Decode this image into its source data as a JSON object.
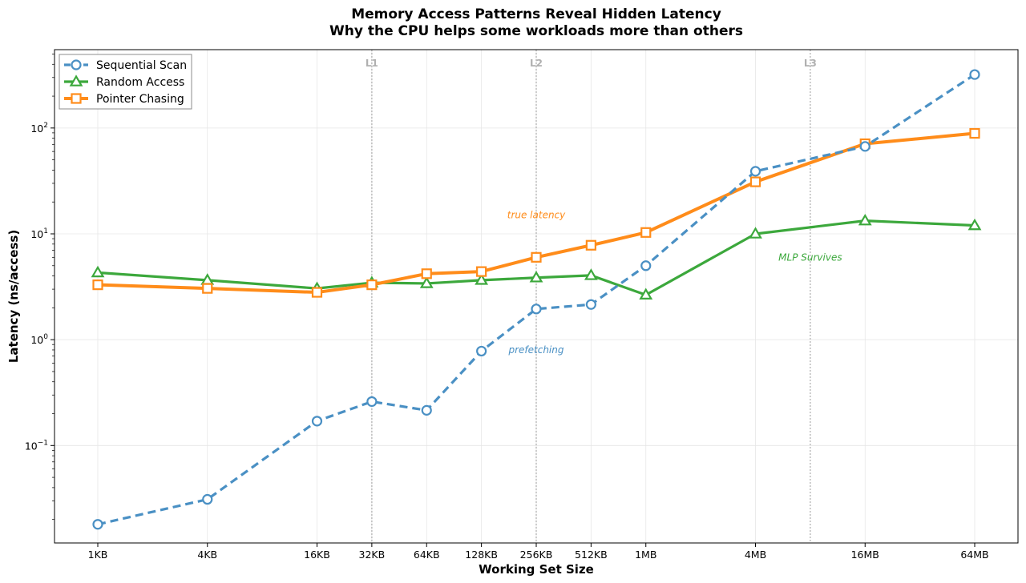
{
  "chart_data": {
    "type": "line",
    "title": "Memory Access Patterns Reveal Hidden Latency",
    "subtitle": "Why the CPU helps some workloads more than others",
    "xlabel": "Working Set Size",
    "ylabel": "Latency (ns/access)",
    "yscale": "log",
    "ylim": [
      0.012,
      550
    ],
    "grid": true,
    "legend_position": "top-left",
    "x_tick_labels": [
      "1KB",
      "4KB",
      "16KB",
      "32KB",
      "64KB",
      "128KB",
      "256KB",
      "512KB",
      "1MB",
      "4MB",
      "16MB",
      "64MB"
    ],
    "x_values_kb": [
      1,
      4,
      16,
      32,
      64,
      128,
      256,
      512,
      1024,
      4096,
      16384,
      65536
    ],
    "y_ticks": [
      {
        "value": 0.1,
        "base": "10",
        "exp": "−1"
      },
      {
        "value": 1,
        "base": "10",
        "exp": "0"
      },
      {
        "value": 10,
        "base": "10",
        "exp": "1"
      },
      {
        "value": 100,
        "base": "10",
        "exp": "2"
      }
    ],
    "series": [
      {
        "name": "Sequential Scan",
        "color": "#4a90c4",
        "marker": "circle",
        "linestyle": "dashed",
        "values": [
          0.018,
          0.031,
          0.17,
          0.26,
          0.215,
          0.78,
          1.95,
          2.15,
          5.0,
          39,
          67,
          320
        ]
      },
      {
        "name": "Random Access",
        "color": "#3ca83c",
        "marker": "triangle",
        "linestyle": "solid",
        "values": [
          4.3,
          3.65,
          3.05,
          3.45,
          3.4,
          3.65,
          3.85,
          4.05,
          2.65,
          10.0,
          13.3,
          12.0
        ]
      },
      {
        "name": "Pointer Chasing",
        "color": "#ff8c1a",
        "marker": "square",
        "linestyle": "solid",
        "values": [
          3.3,
          3.05,
          2.8,
          3.3,
          4.2,
          4.4,
          6.0,
          7.8,
          10.3,
          31,
          71,
          89
        ]
      }
    ],
    "cache_boundaries": [
      {
        "label": "L1",
        "x_kb": 32
      },
      {
        "label": "L2",
        "x_kb": 256
      },
      {
        "label": "L3",
        "x_kb": 8192
      }
    ],
    "annotations": [
      {
        "text": "true latency",
        "x_kb": 256,
        "y": 15,
        "color": "#ff8c1a"
      },
      {
        "text": "prefetching",
        "x_kb": 256,
        "y": 0.8,
        "color": "#4a90c4"
      },
      {
        "text": "MLP Survives",
        "x_kb": 8192,
        "y": 6.0,
        "color": "#3ca83c"
      }
    ]
  }
}
